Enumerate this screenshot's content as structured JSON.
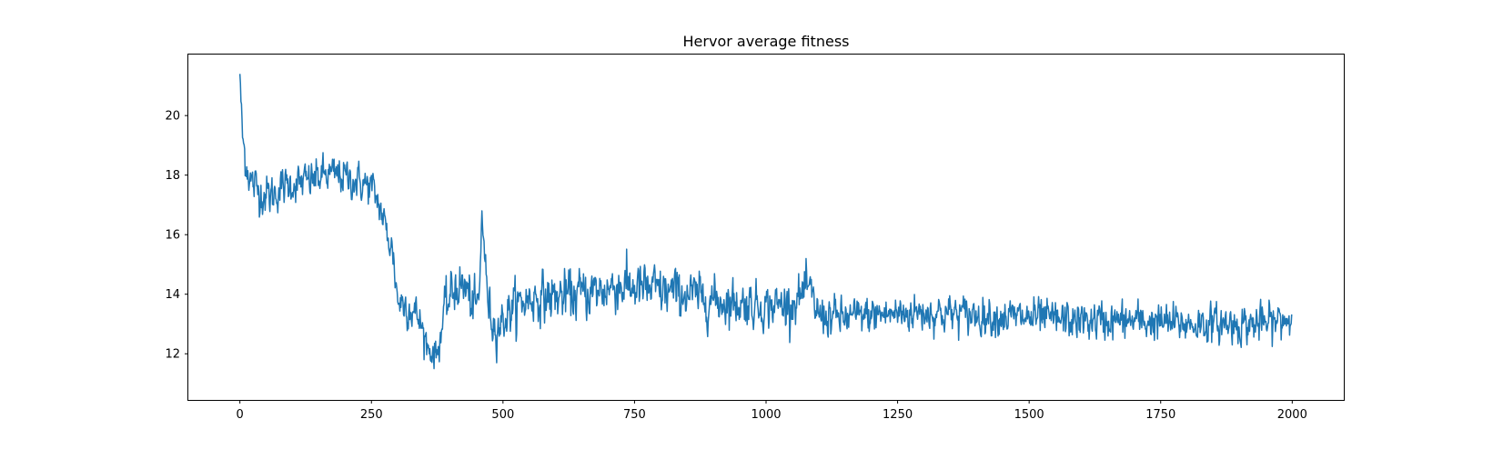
{
  "chart_data": {
    "type": "line",
    "title": "Hervor average fitness",
    "xlabel": "",
    "ylabel": "",
    "xlim": [
      -98,
      2098
    ],
    "ylim": [
      10.45,
      22.05
    ],
    "grid": false,
    "legend": "none",
    "x_ticks": [
      0,
      250,
      500,
      750,
      1000,
      1250,
      1500,
      1750,
      2000
    ],
    "y_ticks": [
      12,
      14,
      16,
      18,
      20
    ],
    "series": [
      {
        "color": "#1f77b4",
        "x_range": [
          0,
          1999
        ],
        "envelope_x": [
          0,
          2,
          5,
          10,
          20,
          40,
          60,
          80,
          100,
          130,
          160,
          190,
          220,
          250,
          265,
          280,
          290,
          300,
          320,
          340,
          360,
          375,
          390,
          410,
          430,
          445,
          455,
          460,
          470,
          480,
          490,
          520,
          560,
          600,
          640,
          680,
          720,
          760,
          800,
          850,
          900,
          950,
          1000,
          1050,
          1080,
          1100,
          1150,
          1200,
          1300,
          1400,
          1500,
          1600,
          1700,
          1800,
          1900,
          1950,
          1999
        ],
        "envelope_mean": [
          21.4,
          20.5,
          19.3,
          18.6,
          17.8,
          17.4,
          17.3,
          17.6,
          17.7,
          17.8,
          18.0,
          18.0,
          17.8,
          17.6,
          17.0,
          16.0,
          15.5,
          13.8,
          13.6,
          13.2,
          12.1,
          12.0,
          13.5,
          14.3,
          14.2,
          13.5,
          13.8,
          16.8,
          14.0,
          13.0,
          12.9,
          13.6,
          13.9,
          13.9,
          14.0,
          14.1,
          14.3,
          14.2,
          14.1,
          14.0,
          13.8,
          13.7,
          13.6,
          13.7,
          14.2,
          13.3,
          13.2,
          13.3,
          13.4,
          13.3,
          13.2,
          13.1,
          13.1,
          13.0,
          13.0,
          13.0,
          13.2
        ],
        "envelope_noise": [
          0.2,
          0.3,
          0.4,
          0.5,
          0.5,
          0.5,
          0.5,
          0.45,
          0.45,
          0.45,
          0.45,
          0.45,
          0.45,
          0.45,
          0.45,
          0.45,
          0.45,
          0.45,
          0.5,
          0.45,
          0.35,
          0.35,
          0.5,
          0.6,
          0.6,
          0.55,
          0.5,
          0.3,
          0.5,
          0.5,
          0.5,
          0.55,
          0.55,
          0.6,
          0.6,
          0.6,
          0.6,
          0.6,
          0.6,
          0.55,
          0.55,
          0.55,
          0.5,
          0.5,
          0.5,
          0.5,
          0.45,
          0.45,
          0.45,
          0.45,
          0.45,
          0.45,
          0.45,
          0.45,
          0.45,
          0.45,
          0.45
        ]
      }
    ]
  }
}
